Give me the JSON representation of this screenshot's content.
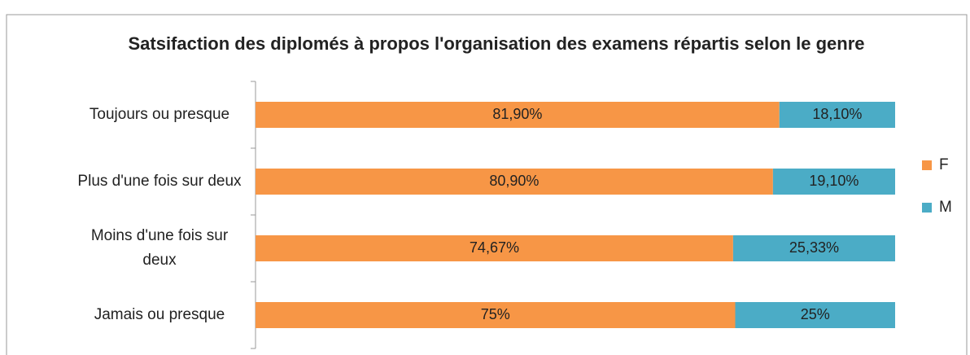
{
  "chart_data": {
    "type": "stacked_bar_horizontal",
    "title": "Satsifaction des diplomés à propos l'organisation des examens répartis selon le genre",
    "categories": [
      "Toujours ou presque",
      "Plus d'une fois sur deux",
      "Moins d'une fois sur deux",
      "Jamais ou presque"
    ],
    "series": [
      {
        "name": "F",
        "color": "#f79646",
        "values": [
          81.9,
          80.9,
          74.67,
          75
        ],
        "value_labels": [
          "81,90%",
          "80,90%",
          "74,67%",
          "75%"
        ]
      },
      {
        "name": "M",
        "color": "#4bacc6",
        "values": [
          18.1,
          19.1,
          25.33,
          25
        ],
        "value_labels": [
          "18,10%",
          "19,10%",
          "25,33%",
          "25%"
        ]
      }
    ],
    "xlim": [
      0,
      100
    ],
    "legend": "right"
  }
}
